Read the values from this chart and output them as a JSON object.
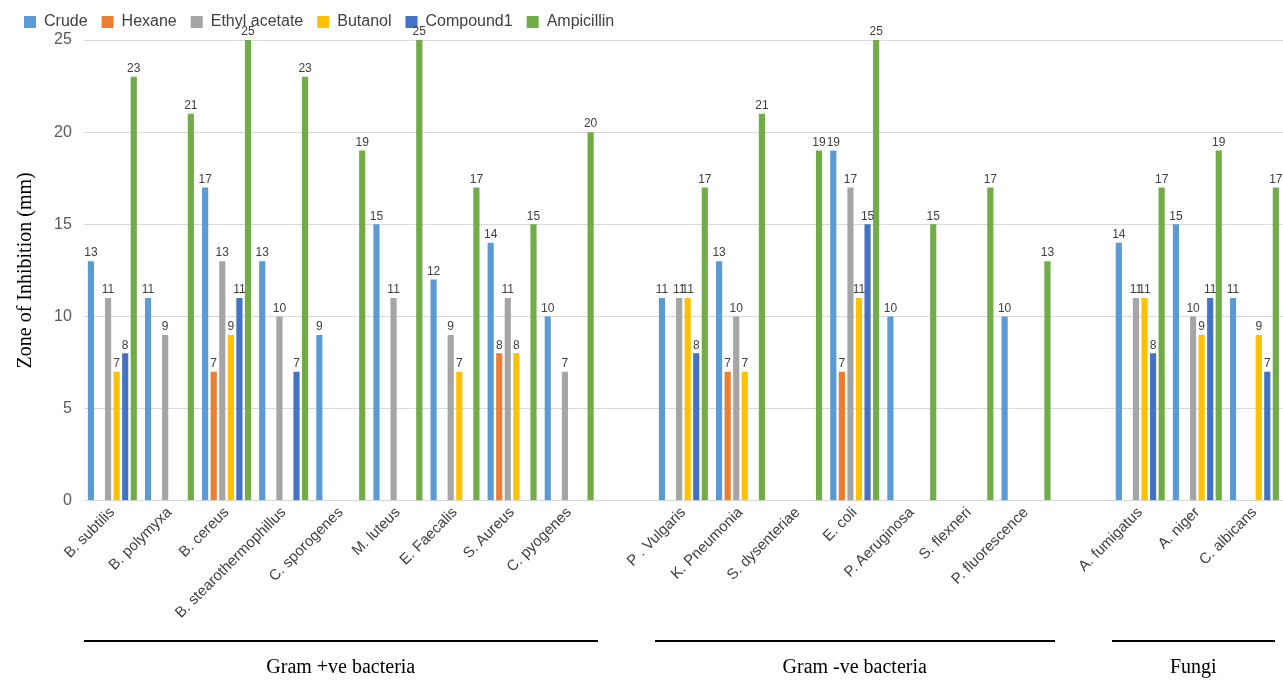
{
  "chart_data": {
    "type": "bar",
    "ylabel": "Zone of Inhibition (mm)",
    "categories": [
      "B. subtilis",
      "B. polymyxa",
      "B. cereus",
      "B. stearothermophillus",
      "C. sporogenes",
      "M. luteus",
      "E. Faecalis",
      "S. Aureus",
      "C. pyogenes",
      null,
      "P . Vulgaris",
      "K. Pneumonia",
      "S. dysenteriae",
      "E. coli",
      "P. Aeruginosa",
      "S. flexneri",
      "P. fluorescence",
      null,
      "A. fumigatus",
      "A. niger",
      "C. albicans"
    ],
    "series": [
      {
        "name": "Crude",
        "color": "#5b9bd5",
        "values": [
          13,
          11,
          17,
          13,
          9,
          15,
          12,
          14,
          10,
          null,
          11,
          13,
          null,
          19,
          10,
          null,
          10,
          null,
          14,
          15,
          11
        ]
      },
      {
        "name": "Hexane",
        "color": "#ed7d31",
        "values": [
          null,
          null,
          7,
          null,
          null,
          null,
          null,
          8,
          null,
          null,
          null,
          7,
          null,
          7,
          null,
          null,
          null,
          null,
          null,
          null,
          null
        ]
      },
      {
        "name": "Ethyl acetate",
        "color": "#a5a5a5",
        "values": [
          11,
          9,
          13,
          10,
          null,
          11,
          9,
          11,
          7,
          null,
          11,
          10,
          null,
          17,
          null,
          null,
          null,
          null,
          11,
          10,
          null
        ]
      },
      {
        "name": "Butanol",
        "color": "#ffc000",
        "values": [
          7,
          null,
          9,
          null,
          null,
          null,
          7,
          8,
          null,
          null,
          11,
          7,
          null,
          11,
          null,
          null,
          null,
          null,
          11,
          9,
          9
        ]
      },
      {
        "name": "Compound1",
        "color": "#4472c4",
        "values": [
          8,
          null,
          11,
          7,
          null,
          null,
          null,
          null,
          null,
          null,
          8,
          null,
          null,
          15,
          null,
          null,
          null,
          null,
          8,
          11,
          7
        ]
      },
      {
        "name": "Ampicillin",
        "color": "#70ad47",
        "values": [
          23,
          21,
          25,
          23,
          19,
          25,
          17,
          15,
          20,
          null,
          17,
          21,
          19,
          25,
          15,
          17,
          13,
          null,
          17,
          19,
          17
        ]
      }
    ],
    "ylim": [
      0,
      25
    ],
    "yticks": [
      0,
      5,
      10,
      15,
      20,
      25
    ],
    "grid": "y",
    "legend": "top left",
    "data_labels": true,
    "annotations": [
      "Gram +ve bacteria",
      "Gram -ve bacteria",
      "Fungi"
    ]
  }
}
